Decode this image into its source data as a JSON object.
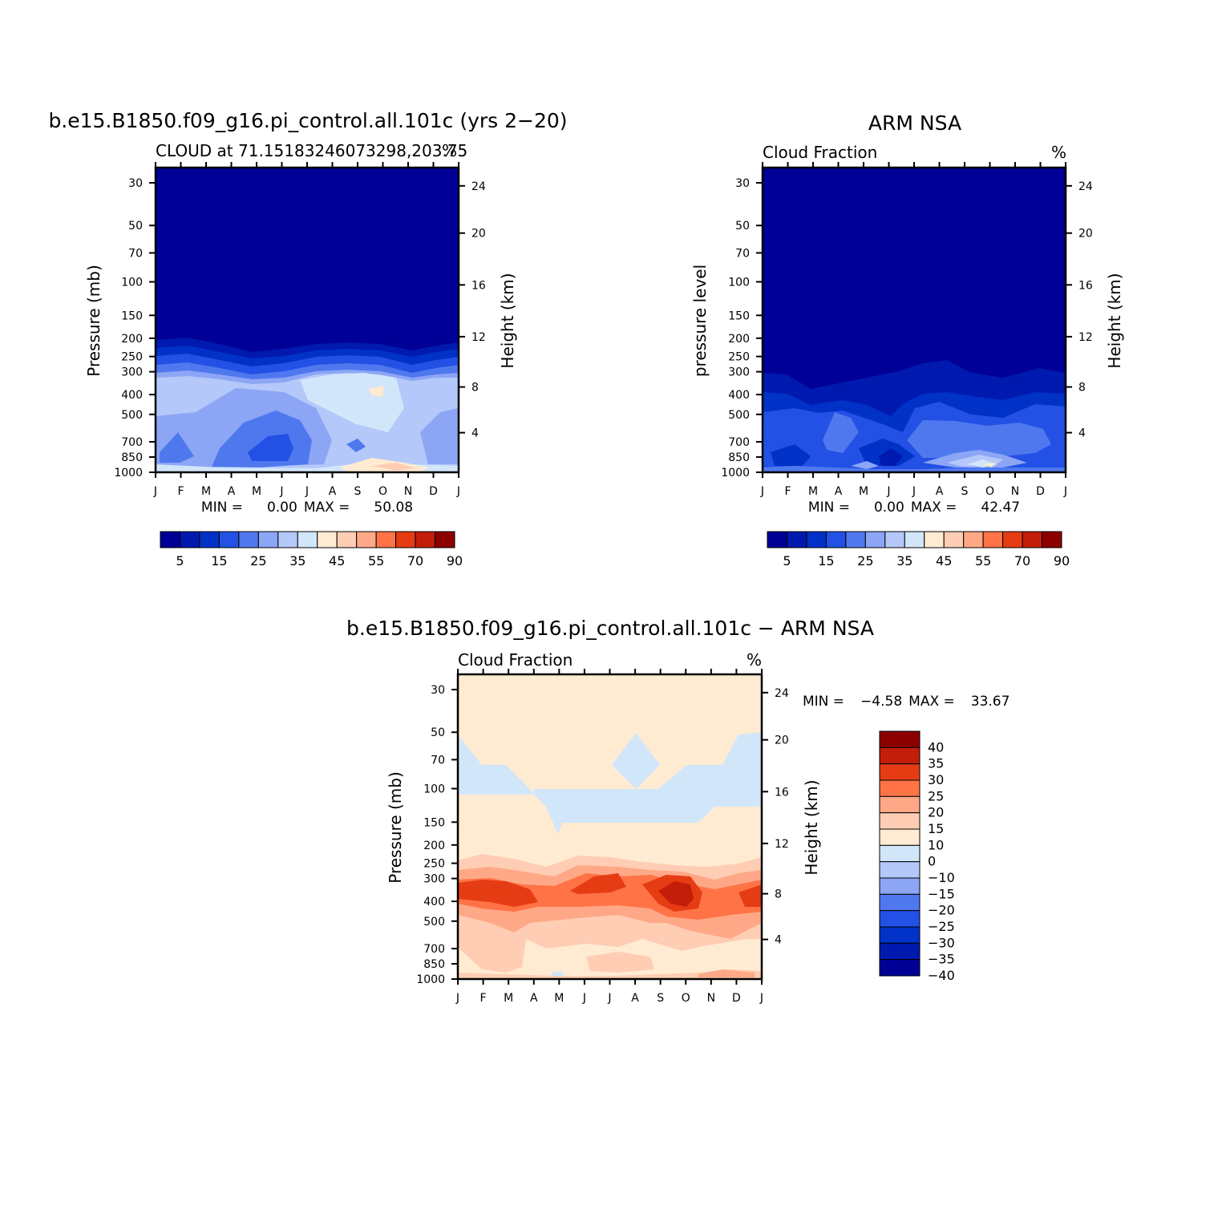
{
  "chart_data": [
    {
      "type": "heatmap",
      "id": "model",
      "title": "b.e15.B1850.f09_g16.pi_control.all.101c (yrs 2−20)",
      "subtitle_left": "CLOUD at 71.15183246073298,203.75",
      "subtitle_right": "%",
      "ylabel": "Pressure (mb)",
      "ylabel_right": "Height (km)",
      "x_ticks": [
        "J",
        "F",
        "M",
        "A",
        "M",
        "J",
        "J",
        "A",
        "S",
        "O",
        "N",
        "D",
        "J"
      ],
      "pressure_ticks": [
        "30",
        "50",
        "70",
        "100",
        "150",
        "200",
        "250",
        "300",
        "400",
        "500",
        "700",
        "850",
        "1000"
      ],
      "height_ticks": [
        "24",
        "20",
        "16",
        "12",
        "8",
        "4"
      ],
      "stats": {
        "min_label": "MIN =",
        "min": "0.00",
        "max_label": "MAX =",
        "max": "50.08"
      },
      "colorbar_labels": [
        "5",
        "15",
        "25",
        "35",
        "45",
        "55",
        "70",
        "90"
      ],
      "value_range": [
        0,
        50.08
      ]
    },
    {
      "type": "heatmap",
      "id": "obs",
      "title": "ARM NSA",
      "subtitle_left": "Cloud Fraction",
      "subtitle_right": "%",
      "ylabel": "pressure level",
      "ylabel_right": "Height (km)",
      "x_ticks": [
        "J",
        "F",
        "M",
        "A",
        "M",
        "J",
        "J",
        "A",
        "S",
        "O",
        "N",
        "D",
        "J"
      ],
      "pressure_ticks": [
        "30",
        "50",
        "70",
        "100",
        "150",
        "200",
        "250",
        "300",
        "400",
        "500",
        "700",
        "850",
        "1000"
      ],
      "height_ticks": [
        "24",
        "20",
        "16",
        "12",
        "8",
        "4"
      ],
      "stats": {
        "min_label": "MIN =",
        "min": "0.00",
        "max_label": "MAX =",
        "max": "42.47"
      },
      "colorbar_labels": [
        "5",
        "15",
        "25",
        "35",
        "45",
        "55",
        "70",
        "90"
      ],
      "value_range": [
        0,
        42.47
      ]
    },
    {
      "type": "heatmap",
      "id": "diff",
      "title": "b.e15.B1850.f09_g16.pi_control.all.101c − ARM NSA",
      "subtitle_left": "Cloud Fraction",
      "subtitle_right": "%",
      "ylabel": "Pressure (mb)",
      "ylabel_right": "Height (km)",
      "x_ticks": [
        "J",
        "F",
        "M",
        "A",
        "M",
        "J",
        "J",
        "A",
        "S",
        "O",
        "N",
        "D",
        "J"
      ],
      "pressure_ticks": [
        "30",
        "50",
        "70",
        "100",
        "150",
        "200",
        "250",
        "300",
        "400",
        "500",
        "700",
        "850",
        "1000"
      ],
      "height_ticks": [
        "24",
        "20",
        "16",
        "12",
        "8",
        "4"
      ],
      "stats": {
        "min_label": "MIN =",
        "min": "−4.58",
        "max_label": "MAX =",
        "max": "33.67"
      },
      "colorbar_labels": [
        "40",
        "35",
        "30",
        "25",
        "20",
        "15",
        "10",
        "0",
        "−10",
        "−15",
        "−20",
        "−25",
        "−30",
        "−35",
        "−40"
      ],
      "value_range": [
        -4.58,
        33.67
      ]
    }
  ],
  "palettes": {
    "sequential": [
      "#000096",
      "#0019AE",
      "#0032C8",
      "#2350E5",
      "#5078EE",
      "#8CA5F5",
      "#B4C8FA",
      "#D2E6FA",
      "#FFEBD2",
      "#FFCDB4",
      "#FFA887",
      "#FF7346",
      "#E63C14",
      "#C31E0A",
      "#8C0000"
    ],
    "diverging": [
      "#8C0000",
      "#C31E0A",
      "#E63C14",
      "#FF7346",
      "#FFA887",
      "#FFCDB4",
      "#FFEBD2",
      "#D2E6FA",
      "#B4C8FA",
      "#8CA5F5",
      "#5078EE",
      "#2350E5",
      "#0032C8",
      "#0019AE",
      "#000096"
    ]
  }
}
